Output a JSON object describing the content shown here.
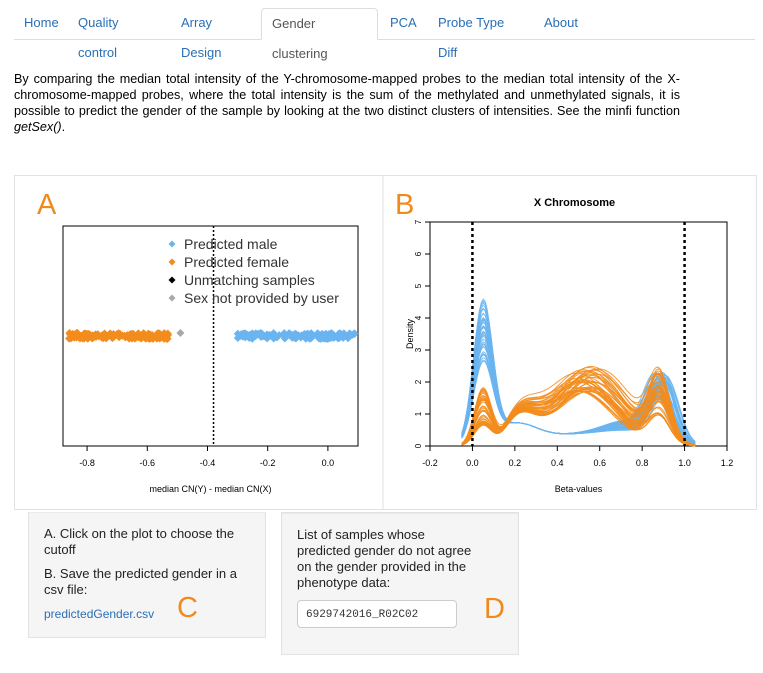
{
  "nav": {
    "tabs": [
      {
        "label": "Home",
        "active": false
      },
      {
        "label": "Quality control",
        "active": false
      },
      {
        "label": "Array Design",
        "active": false
      },
      {
        "label": "Gender clustering",
        "active": true
      },
      {
        "label": "PCA",
        "active": false
      },
      {
        "label": "Probe Type Diff",
        "active": false
      },
      {
        "label": "About",
        "active": false
      }
    ]
  },
  "intro": {
    "text_before": "By comparing the median total intensity of the Y-chromosome-mapped probes to the median total intensity of the X-chromosome-mapped probes, where the total intensity is the sum of the methylated and unmethylated signals, it is possible to predict the gender of the sample by looking at the two distinct clusters of intensities. See the minfi function ",
    "function_name": "getSex()",
    "text_after": "."
  },
  "panel_labels": {
    "a": "A",
    "b": "B",
    "c": "C",
    "d": "D"
  },
  "chart_data": [
    {
      "type": "scatter",
      "title": "",
      "xlabel": "median CN(Y)  - median CN(X)",
      "ylabel": "",
      "xticks": [
        "-0.8",
        "-0.6",
        "-0.4",
        "-0.2",
        "0.0"
      ],
      "xlim": [
        -0.88,
        0.1
      ],
      "cutoff": -0.38,
      "legend": {
        "placement": "top-right",
        "entries": [
          {
            "name": "Predicted male",
            "color": "#6ab4f0"
          },
          {
            "name": "Predicted female",
            "color": "#f28c1c"
          },
          {
            "name": "Unmatching samples",
            "color": "#000000"
          },
          {
            "name": "Sex not provided by user",
            "color": "#a8a8a8"
          }
        ]
      },
      "series": [
        {
          "name": "Predicted female",
          "color": "#f28c1c",
          "x_range": [
            -0.86,
            -0.53
          ],
          "n": 150
        },
        {
          "name": "Predicted male",
          "color": "#6ab4f0",
          "x_range": [
            -0.3,
            0.09
          ],
          "n": 150
        },
        {
          "name": "Sex not provided by user",
          "color": "#a8a8a8",
          "x": [
            -0.49
          ]
        }
      ]
    },
    {
      "type": "line",
      "title": "X Chromosome",
      "xlabel": "Beta-values",
      "ylabel": "Density",
      "xticks": [
        "-0.2",
        "0.0",
        "0.2",
        "0.4",
        "0.6",
        "0.8",
        "1.0",
        "1.2"
      ],
      "yticks": [
        "0",
        "1",
        "2",
        "3",
        "4",
        "5",
        "6",
        "7"
      ],
      "xlim": [
        -0.2,
        1.2
      ],
      "ylim": [
        0,
        7
      ],
      "cutoffs": [
        0.0,
        1.0
      ],
      "series": [
        {
          "name": "male density curves",
          "color": "#6ab4f0",
          "count": 40
        },
        {
          "name": "female density curves",
          "color": "#f28c1c",
          "count": 40
        }
      ]
    }
  ],
  "wellA": {
    "step_a": "A. Click on the plot to choose the cutoff",
    "step_b": "B. Save the predicted gender in a csv file:",
    "link": "predictedGender.csv"
  },
  "wellB": {
    "text": "List of samples whose predicted gender do not agree on the gender provided in the phenotype data:",
    "selected": "6929742016_R02C02"
  }
}
